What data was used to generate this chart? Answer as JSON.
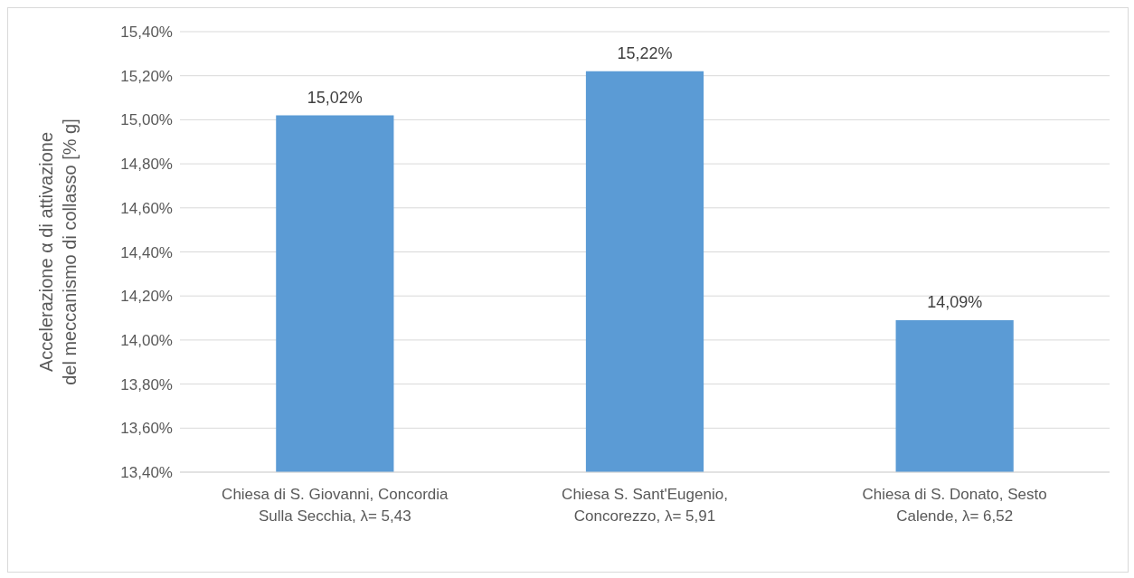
{
  "chart_data": {
    "type": "bar",
    "ylabel": "Accelerazione α di attivazione del meccanismo di collasso [% g]",
    "categories": [
      "Chiesa di S. Giovanni, Concordia Sulla Secchia, λ= 5,43",
      "Chiesa S. Sant'Eugenio, Concorezzo, λ= 5,91",
      "Chiesa di S. Donato, Sesto Calende, λ= 6,52"
    ],
    "values": [
      15.02,
      15.22,
      14.09
    ],
    "value_labels": [
      "15,02%",
      "15,22%",
      "14,09%"
    ],
    "color": "#5b9bd5",
    "ylim": [
      13.4,
      15.4
    ],
    "yticks": [
      {
        "value": 13.4,
        "label": "13,40%"
      },
      {
        "value": 13.6,
        "label": "13,60%"
      },
      {
        "value": 13.8,
        "label": "13,80%"
      },
      {
        "value": 14.0,
        "label": "14,00%"
      },
      {
        "value": 14.2,
        "label": "14,20%"
      },
      {
        "value": 14.4,
        "label": "14,40%"
      },
      {
        "value": 14.6,
        "label": "14,60%"
      },
      {
        "value": 14.8,
        "label": "14,80%"
      },
      {
        "value": 15.0,
        "label": "15,00%"
      },
      {
        "value": 15.2,
        "label": "15,20%"
      },
      {
        "value": 15.4,
        "label": "15,40%"
      }
    ],
    "grid": "y"
  }
}
